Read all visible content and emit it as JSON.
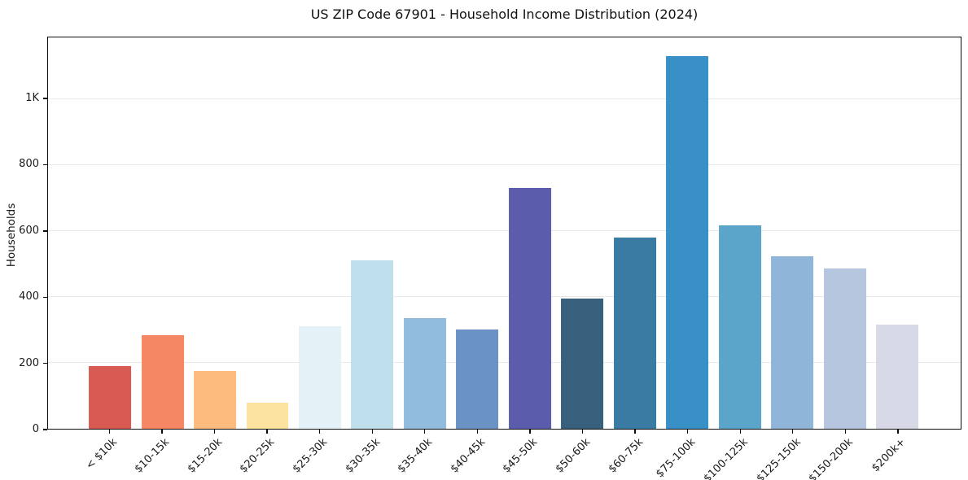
{
  "chart_data": {
    "type": "bar",
    "title": "US ZIP Code 67901 - Household Income Distribution (2024)",
    "xlabel": "",
    "ylabel": "Households",
    "categories": [
      "< $10k",
      "$10-15k",
      "$15-20k",
      "$20-25k",
      "$25-30k",
      "$30-35k",
      "$35-40k",
      "$40-45k",
      "$45-50k",
      "$50-60k",
      "$60-75k",
      "$75-100k",
      "$100-125k",
      "$125-150k",
      "$150-200k",
      "$200k+"
    ],
    "values": [
      189,
      283,
      176,
      80,
      312,
      511,
      336,
      300,
      730,
      395,
      580,
      1130,
      617,
      523,
      486,
      315
    ],
    "bar_colors": [
      "#d95a52",
      "#f58764",
      "#fcbc7e",
      "#fde3a0",
      "#e4f1f7",
      "#c0dfed",
      "#92bcdd",
      "#6b92c5",
      "#5b5dac",
      "#36607b",
      "#3a7ba3",
      "#3890c6",
      "#5ba5cb",
      "#8fb6d9",
      "#b5c6de",
      "#d7d9e6"
    ],
    "ytick_values": [
      0,
      200,
      400,
      600,
      800,
      1000
    ],
    "ytick_labels": [
      "0",
      "200",
      "400",
      "600",
      "800",
      "1K"
    ],
    "ylim": [
      0,
      1187
    ],
    "grid": "horizontal",
    "gridline_color": "#e9e9e9",
    "axis_color": "#0d0d0d",
    "background_color": "#ffffff",
    "legend": "none"
  }
}
